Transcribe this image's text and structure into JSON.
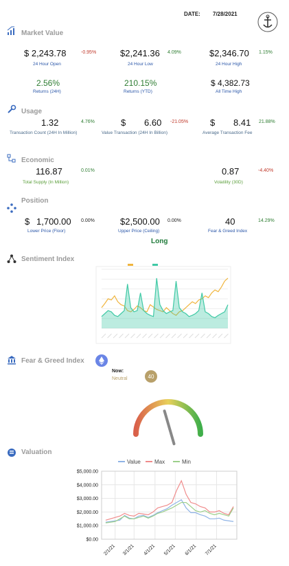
{
  "header": {
    "date_label": "DATE:",
    "date": "7/28/2021"
  },
  "market_value": {
    "title": "Market Value",
    "items": [
      {
        "value": "$ 2,243.78",
        "change": "-0.95%",
        "label": "24 Hour Open"
      },
      {
        "value": "$2,241.36",
        "change": "4.09%",
        "label": "24 Hour Low"
      },
      {
        "value": "$2,346.70",
        "change": "1.15%",
        "label": "24 Hour High"
      },
      {
        "value": "2.56%",
        "label": "Returns (24H)"
      },
      {
        "value": "210.15%",
        "label": "Returns (YTD)"
      },
      {
        "value": "$ 4,382.73",
        "label": "All Time High"
      }
    ]
  },
  "usage": {
    "title": "Usage",
    "items": [
      {
        "value": "1.32",
        "change": "4.76%",
        "label": "Transaction Count (24H In Million)"
      },
      {
        "currency": "$",
        "value": "6.60",
        "change": "-21.05%",
        "label": "Value Transaction (24H In Billion)"
      },
      {
        "currency": "$",
        "value": "8.41",
        "change": "21.88%",
        "label": "Average Transaction Fee"
      }
    ]
  },
  "economic": {
    "title": "Economic",
    "items": [
      {
        "value": "116.87",
        "change": "0.01%",
        "label": "Total Supply (In Million)"
      },
      {
        "value": "0.87",
        "change": "-4.40%",
        "label": "Volatility (30D)"
      }
    ]
  },
  "position": {
    "title": "Position",
    "items": [
      {
        "currency": "$",
        "value": "1,700.00",
        "change": "0.00%",
        "label": "Lower Price (Floor)"
      },
      {
        "value": "$2,500.00",
        "change": "0.00%",
        "label": "Upper Price (Ceiling)"
      },
      {
        "value": "40",
        "change": "14.29%",
        "label": "Fear & Greed Index"
      }
    ],
    "signal": "Long"
  },
  "sentiment": {
    "title": "Sentiment Index",
    "chart_data": {
      "type": "line",
      "ylim": [
        0,
        100
      ],
      "series": [
        {
          "color": "#f0b43c",
          "values": [
            35,
            42,
            50,
            48,
            55,
            45,
            40,
            38,
            30,
            28,
            32,
            38,
            35,
            30,
            28,
            40,
            36,
            32,
            30,
            28,
            35,
            30,
            25,
            22,
            28,
            30,
            35,
            40,
            45,
            42,
            48,
            50,
            55,
            52,
            60,
            65,
            62,
            70,
            80,
            85
          ]
        },
        {
          "color": "#3fc9a5",
          "values": [
            20,
            25,
            30,
            28,
            22,
            20,
            25,
            30,
            75,
            35,
            28,
            30,
            60,
            30,
            25,
            22,
            20,
            85,
            40,
            30,
            25,
            28,
            30,
            80,
            35,
            28,
            25,
            20,
            22,
            25,
            30,
            60,
            28,
            25,
            20,
            18,
            22,
            25,
            28,
            40
          ]
        }
      ]
    }
  },
  "fear_greed": {
    "title": "Fear & Greed Index",
    "now_label": "Now:",
    "status": "Neutral",
    "value": 40,
    "range": [
      0,
      100
    ]
  },
  "valuation": {
    "title": "Valuation",
    "chart_data": {
      "type": "line",
      "x": [
        "1/18/21",
        "1/25/21",
        "2/1/21",
        "2/8/21",
        "2/15/21",
        "2/22/21",
        "3/1/21",
        "3/8/21",
        "3/15/21",
        "3/22/21",
        "3/29/21",
        "4/5/21",
        "4/12/21",
        "4/19/21",
        "4/26/21",
        "5/3/21",
        "5/10/21",
        "5/17/21",
        "5/24/21",
        "5/31/21",
        "6/7/21",
        "6/14/21",
        "6/21/21",
        "6/28/21",
        "7/5/21",
        "7/12/21",
        "7/19/21",
        "7/26/21"
      ],
      "series": [
        {
          "name": "Value",
          "color": "#8fb4e6",
          "values": [
            1250,
            1300,
            1350,
            1400,
            1750,
            1550,
            1500,
            1700,
            1750,
            1600,
            1750,
            1950,
            2100,
            2250,
            2500,
            2700,
            2900,
            2300,
            1950,
            1950,
            1800,
            1700,
            1500,
            1500,
            1550,
            1400,
            1350,
            1300
          ]
        },
        {
          "name": "Max",
          "color": "#f08a8a",
          "values": [
            1400,
            1500,
            1600,
            1700,
            1900,
            1750,
            1700,
            1900,
            1850,
            1800,
            2000,
            2300,
            2400,
            2500,
            2700,
            3600,
            4300,
            3300,
            2700,
            2600,
            2400,
            2300,
            2000,
            2000,
            2100,
            1900,
            1800,
            2400
          ]
        },
        {
          "name": "Min",
          "color": "#9ccf8a",
          "values": [
            1200,
            1250,
            1300,
            1500,
            1700,
            1500,
            1500,
            1600,
            1700,
            1550,
            1700,
            1900,
            2000,
            2150,
            2300,
            2500,
            2700,
            2700,
            2400,
            2100,
            2000,
            2100,
            1900,
            1800,
            1900,
            1800,
            1700,
            2300
          ]
        }
      ],
      "xlim": [
        "1/12/21",
        "7/31/21"
      ],
      "xticks": [
        "2/1/21",
        "3/1/21",
        "4/1/21",
        "5/1/21",
        "6/1/21",
        "7/1/21"
      ],
      "ylim": [
        0,
        5000
      ],
      "yticks": [
        {
          "value": 0,
          "label": "$0.00"
        },
        {
          "value": 1000,
          "label": "$1,000.00"
        },
        {
          "value": 2000,
          "label": "$2,000.00"
        },
        {
          "value": 3000,
          "label": "$3,000.00"
        },
        {
          "value": 4000,
          "label": "$4,000.00"
        },
        {
          "value": 5000,
          "label": "$5,000.00"
        }
      ],
      "grid": true,
      "legend": "top"
    }
  }
}
